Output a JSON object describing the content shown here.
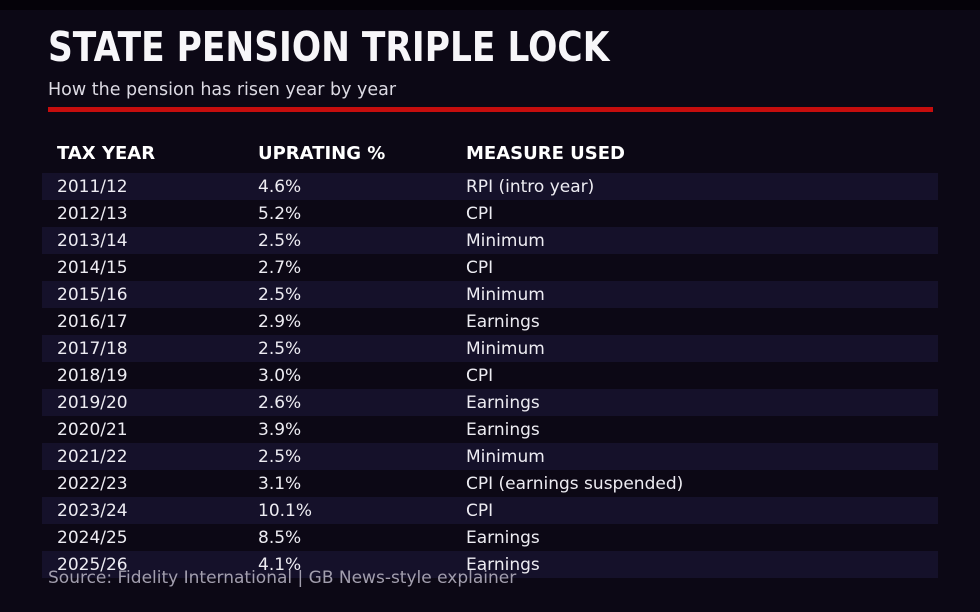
{
  "header": {
    "title": "STATE PENSION TRIPLE LOCK",
    "subtitle": "How the pension has risen year by year"
  },
  "footer": {
    "source": "Source: Fidelity International | GB News-style explainer"
  },
  "colors": {
    "background": "#0c0815",
    "top_band": "#050209",
    "accent_red": "#c60d0d",
    "row_highlight": "#15112a",
    "text_primary": "#edecf2",
    "text_muted": "#a29eae"
  },
  "chart_data": {
    "type": "table",
    "title": "STATE PENSION TRIPLE LOCK",
    "subtitle": "How the pension has risen year by year",
    "columns": [
      "TAX YEAR",
      "UPRATING %",
      "MEASURE USED"
    ],
    "rows": [
      [
        "2011/12",
        "4.6%",
        "RPI (intro year)"
      ],
      [
        "2012/13",
        "5.2%",
        "CPI"
      ],
      [
        "2013/14",
        "2.5%",
        "Minimum"
      ],
      [
        "2014/15",
        "2.7%",
        "CPI"
      ],
      [
        "2015/16",
        "2.5%",
        "Minimum"
      ],
      [
        "2016/17",
        "2.9%",
        "Earnings"
      ],
      [
        "2017/18",
        "2.5%",
        "Minimum"
      ],
      [
        "2018/19",
        "3.0%",
        "CPI"
      ],
      [
        "2019/20",
        "2.6%",
        "Earnings"
      ],
      [
        "2020/21",
        "3.9%",
        "Earnings"
      ],
      [
        "2021/22",
        "2.5%",
        "Minimum"
      ],
      [
        "2022/23",
        "3.1%",
        "CPI (earnings suspended)"
      ],
      [
        "2023/24",
        "10.1%",
        "CPI"
      ],
      [
        "2024/25",
        "8.5%",
        "Earnings"
      ],
      [
        "2025/26",
        "4.1%",
        "Earnings"
      ]
    ],
    "source": "Source: Fidelity International | GB News-style explainer",
    "layout": {
      "striping": "odd rows highlighted starting with first data row",
      "header_style": "bold, no background",
      "legend": "none",
      "grid": "off"
    }
  }
}
